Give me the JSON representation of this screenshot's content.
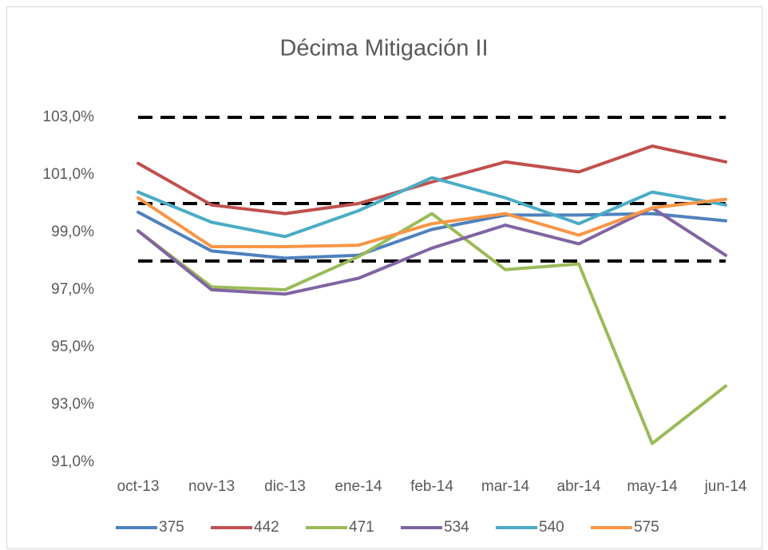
{
  "chart_data": {
    "type": "line",
    "title": "Décima Mitigación II",
    "categories": [
      "oct-13",
      "nov-13",
      "dic-13",
      "ene-14",
      "feb-14",
      "mar-14",
      "abr-14",
      "may-14",
      "jun-14"
    ],
    "series": [
      {
        "name": "375",
        "color": "#4f81bd",
        "values": [
          99.7,
          98.35,
          98.1,
          98.2,
          99.1,
          99.6,
          99.6,
          99.65,
          99.4
        ]
      },
      {
        "name": "442",
        "color": "#c0504d",
        "values": [
          101.4,
          99.95,
          99.65,
          100.0,
          100.75,
          101.45,
          101.1,
          102.0,
          101.45
        ]
      },
      {
        "name": "471",
        "color": "#9bbb59",
        "values": [
          99.05,
          97.1,
          97.0,
          98.15,
          99.65,
          97.7,
          97.9,
          91.65,
          93.65
        ]
      },
      {
        "name": "534",
        "color": "#8064a2",
        "values": [
          99.05,
          97.0,
          96.85,
          97.4,
          98.45,
          99.25,
          98.6,
          99.85,
          98.2
        ]
      },
      {
        "name": "540",
        "color": "#4bacc6",
        "values": [
          100.4,
          99.35,
          98.85,
          99.75,
          100.9,
          100.2,
          99.3,
          100.4,
          99.95
        ]
      },
      {
        "name": "575",
        "color": "#f79646",
        "values": [
          100.2,
          98.5,
          98.5,
          98.55,
          99.3,
          99.65,
          98.9,
          99.85,
          100.15
        ]
      }
    ],
    "reference_lines": [
      103,
      100,
      98
    ],
    "reference_color": "#000000",
    "ylim": [
      91,
      103
    ],
    "yticks": [
      {
        "value": 91,
        "label": "91,0%"
      },
      {
        "value": 93,
        "label": "93,0%"
      },
      {
        "value": 95,
        "label": "95,0%"
      },
      {
        "value": 97,
        "label": "97,0%"
      },
      {
        "value": 99,
        "label": "99,0%"
      },
      {
        "value": 101,
        "label": "101,0%"
      },
      {
        "value": 103,
        "label": "103,0%"
      }
    ],
    "grid": false,
    "legend": "bottom"
  }
}
